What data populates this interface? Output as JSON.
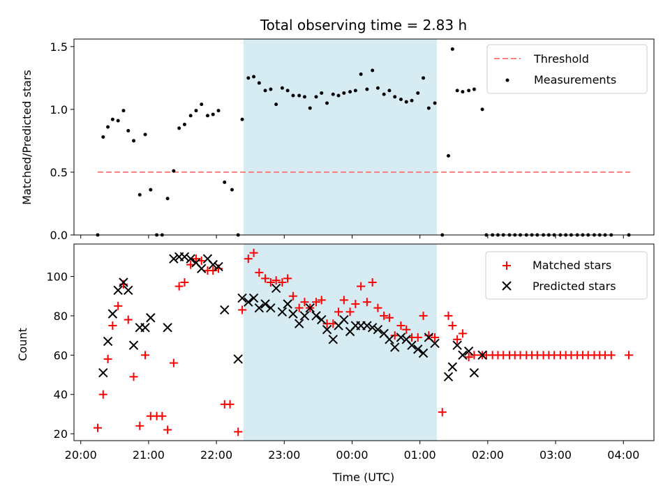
{
  "chart_data": [
    {
      "type": "scatter",
      "title": "Total observing time = 2.83 h",
      "xlabel": "",
      "ylabel": "Matched/Predicted stars",
      "ylim": [
        0,
        1.56
      ],
      "yticks": [
        "0.0",
        "0.5",
        "1.0",
        "1.5"
      ],
      "highlight_span": {
        "x0": 22.4,
        "x1": 25.25,
        "color": "#add8e6"
      },
      "threshold": {
        "name": "Threshold",
        "y": 0.5,
        "x0": 20.25,
        "x1": 28.1,
        "color": "#ff7f7f"
      },
      "series": [
        {
          "name": "Measurements",
          "color": "#000000",
          "x": [
            20.25,
            20.33,
            20.4,
            20.47,
            20.55,
            20.63,
            20.7,
            20.78,
            20.87,
            20.95,
            21.03,
            21.12,
            21.2,
            21.28,
            21.37,
            21.45,
            21.53,
            21.62,
            21.7,
            21.78,
            21.87,
            21.95,
            22.03,
            22.12,
            22.23,
            22.32,
            22.38,
            22.47,
            22.55,
            22.63,
            22.72,
            22.8,
            22.88,
            22.97,
            23.05,
            23.13,
            23.22,
            23.3,
            23.38,
            23.47,
            23.55,
            23.63,
            23.72,
            23.8,
            23.88,
            23.97,
            24.05,
            24.13,
            24.22,
            24.3,
            24.38,
            24.47,
            24.55,
            24.63,
            24.72,
            24.8,
            24.88,
            24.97,
            25.05,
            25.13,
            25.22,
            25.33,
            25.42,
            25.48,
            25.55,
            25.63,
            25.72,
            25.8,
            25.92,
            25.98,
            26.07,
            26.15,
            26.23,
            26.32,
            26.4,
            26.48,
            26.57,
            26.65,
            26.73,
            26.82,
            26.9,
            26.98,
            27.07,
            27.15,
            27.23,
            27.32,
            27.4,
            27.48,
            27.57,
            27.65,
            27.73,
            27.82,
            28.08
          ],
          "y": [
            0.0,
            0.78,
            0.86,
            0.92,
            0.91,
            0.99,
            0.83,
            0.75,
            0.32,
            0.8,
            0.36,
            0.0,
            0.0,
            0.29,
            0.51,
            0.85,
            0.88,
            0.95,
            0.99,
            1.04,
            0.95,
            0.96,
            0.99,
            0.42,
            0.36,
            0.0,
            0.92,
            1.25,
            1.26,
            1.21,
            1.15,
            1.16,
            1.04,
            1.17,
            1.15,
            1.11,
            1.11,
            1.1,
            1.01,
            1.1,
            1.13,
            1.05,
            1.12,
            1.11,
            1.13,
            1.14,
            1.15,
            1.28,
            1.16,
            1.31,
            1.17,
            1.12,
            1.15,
            1.1,
            1.08,
            1.06,
            1.07,
            1.13,
            1.25,
            1.01,
            1.05,
            0.0,
            0.63,
            1.48,
            1.15,
            1.14,
            1.15,
            1.16,
            1.0,
            0.0,
            0.0,
            0.0,
            0.0,
            0.0,
            0.0,
            0.0,
            0.0,
            0.0,
            0.0,
            0.0,
            0.0,
            0.0,
            0.0,
            0.0,
            0.0,
            0.0,
            0.0,
            0.0,
            0.0,
            0.0,
            0.0,
            0.0,
            0.0
          ]
        }
      ],
      "legend": {
        "placement": "top-right",
        "entries": [
          "Threshold",
          "Measurements"
        ]
      }
    },
    {
      "type": "scatter",
      "title": "",
      "xlabel": "Time (UTC)",
      "ylabel": "Count",
      "ylim": [
        16.5,
        116.5
      ],
      "yticks": [
        "20",
        "40",
        "60",
        "80",
        "100"
      ],
      "xlim": [
        19.9,
        28.45
      ],
      "xticks": [
        "20:00",
        "21:00",
        "22:00",
        "23:00",
        "00:00",
        "01:00",
        "02:00",
        "03:00",
        "04:00"
      ],
      "highlight_span": {
        "x0": 22.4,
        "x1": 25.25,
        "color": "#add8e6"
      },
      "series": [
        {
          "name": "Matched stars",
          "marker": "plus",
          "color": "#ff0000",
          "x": [
            20.25,
            20.33,
            20.4,
            20.47,
            20.55,
            20.63,
            20.7,
            20.78,
            20.87,
            20.95,
            21.03,
            21.12,
            21.2,
            21.28,
            21.37,
            21.45,
            21.53,
            21.62,
            21.7,
            21.78,
            21.87,
            21.95,
            22.03,
            22.12,
            22.2,
            22.32,
            22.38,
            22.47,
            22.55,
            22.63,
            22.72,
            22.8,
            22.88,
            22.97,
            23.05,
            23.13,
            23.22,
            23.3,
            23.38,
            23.47,
            23.55,
            23.63,
            23.72,
            23.8,
            23.88,
            23.97,
            24.05,
            24.13,
            24.22,
            24.3,
            24.38,
            24.47,
            24.55,
            24.63,
            24.72,
            24.8,
            24.88,
            24.97,
            25.05,
            25.13,
            25.22,
            25.33,
            25.42,
            25.48,
            25.55,
            25.63,
            25.72,
            25.8,
            25.92,
            25.98,
            26.07,
            26.15,
            26.23,
            26.32,
            26.4,
            26.48,
            26.57,
            26.65,
            26.73,
            26.82,
            26.9,
            26.98,
            27.07,
            27.15,
            27.23,
            27.32,
            27.4,
            27.48,
            27.57,
            27.65,
            27.73,
            27.82,
            28.08
          ],
          "y": [
            23,
            40,
            58,
            75,
            85,
            96,
            78,
            49,
            24,
            60,
            29,
            29,
            29,
            22,
            56,
            95,
            97,
            106,
            109,
            108,
            103,
            103,
            104,
            35,
            35,
            21,
            83,
            109,
            112,
            102,
            99,
            97,
            98,
            97,
            99,
            90,
            84,
            87,
            84,
            87,
            88,
            76,
            76,
            82,
            88,
            82,
            86,
            95,
            87,
            97,
            84,
            80,
            79,
            70,
            75,
            73,
            69,
            69,
            80,
            70,
            69,
            31,
            80,
            75,
            68,
            71,
            59,
            60,
            60,
            60,
            60,
            60,
            60,
            60,
            60,
            60,
            60,
            60,
            60,
            60,
            60,
            60,
            60,
            60,
            60,
            60,
            60,
            60,
            60,
            60,
            60,
            60,
            60
          ]
        },
        {
          "name": "Predicted stars",
          "marker": "x",
          "color": "#000000",
          "x": [
            20.33,
            20.4,
            20.47,
            20.55,
            20.63,
            20.7,
            20.78,
            20.87,
            20.95,
            21.03,
            21.28,
            21.37,
            21.45,
            21.53,
            21.62,
            21.7,
            21.78,
            21.87,
            21.95,
            22.03,
            22.12,
            22.32,
            22.38,
            22.47,
            22.55,
            22.63,
            22.72,
            22.8,
            22.88,
            22.97,
            23.05,
            23.13,
            23.22,
            23.3,
            23.38,
            23.47,
            23.55,
            23.63,
            23.72,
            23.8,
            23.88,
            23.97,
            24.05,
            24.13,
            24.22,
            24.3,
            24.38,
            24.47,
            24.55,
            24.63,
            24.72,
            24.8,
            24.88,
            24.97,
            25.05,
            25.13,
            25.22,
            25.42,
            25.48,
            25.55,
            25.63,
            25.72,
            25.8,
            25.92
          ],
          "y": [
            51,
            67,
            81,
            93,
            97,
            93,
            65,
            74,
            74,
            79,
            74,
            109,
            110,
            110,
            109,
            107,
            104,
            109,
            106,
            105,
            83,
            58,
            89,
            87,
            89,
            84,
            86,
            84,
            94,
            82,
            86,
            81,
            76,
            80,
            84,
            80,
            78,
            73,
            68,
            75,
            78,
            72,
            75,
            75,
            75,
            74,
            73,
            71,
            68,
            64,
            69,
            68,
            65,
            63,
            61,
            69,
            66,
            49,
            54,
            65,
            60,
            62,
            51,
            60
          ]
        }
      ],
      "legend": {
        "placement": "top-right",
        "entries": [
          "Matched stars",
          "Predicted stars"
        ]
      }
    }
  ]
}
